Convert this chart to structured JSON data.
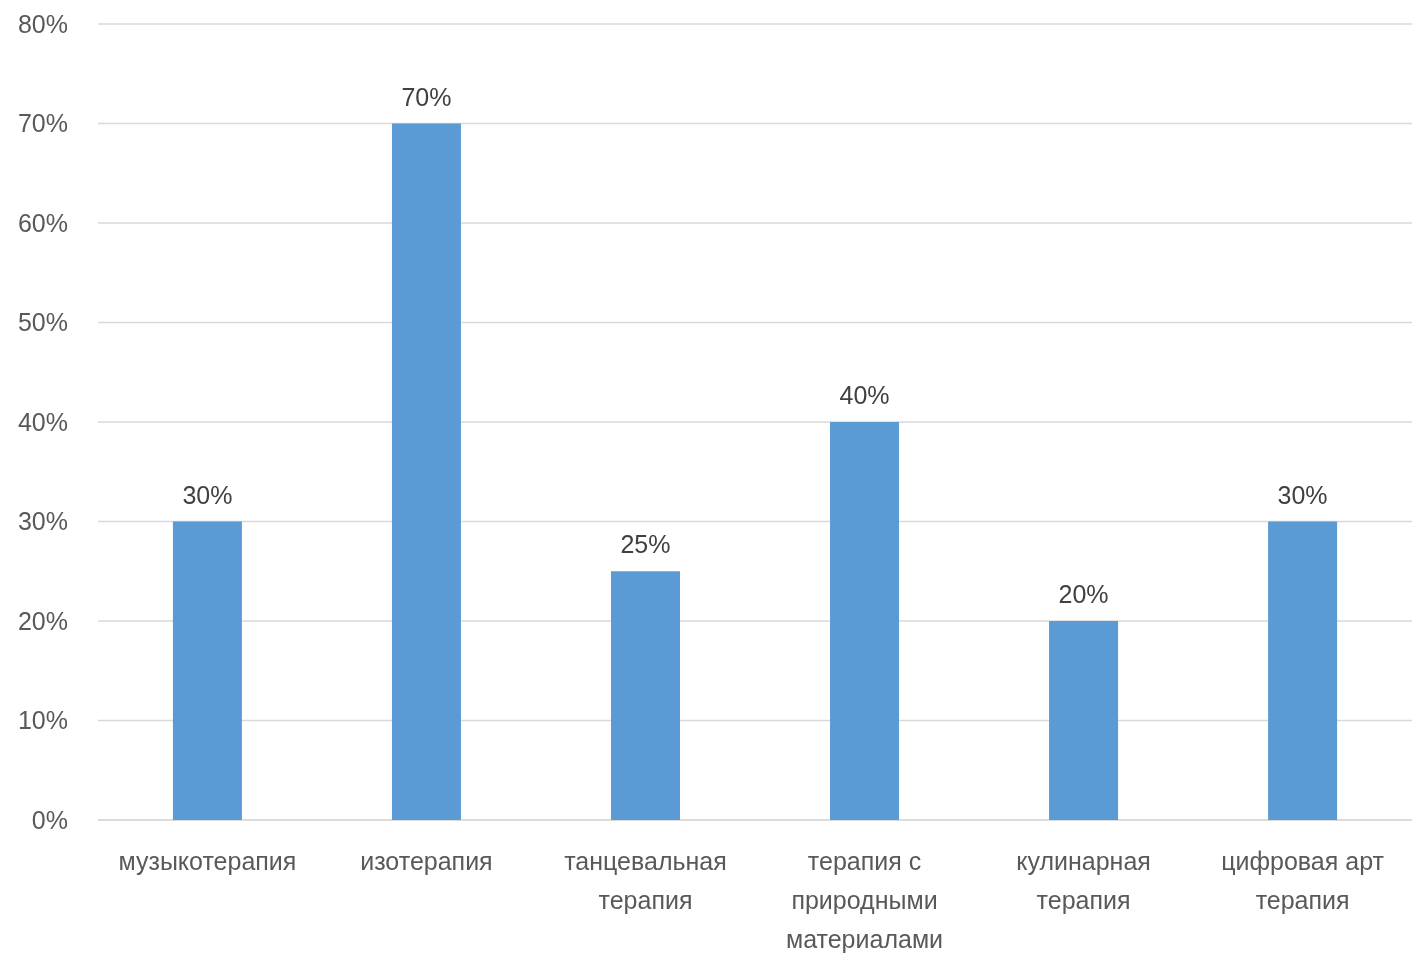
{
  "chart_data": {
    "type": "bar",
    "categories": [
      "музыкотерапия",
      "изотерапия",
      "танцевальная терапия",
      "терапия с природными материалами",
      "кулинарная терапия",
      "цифровая арт терапия"
    ],
    "values": [
      30,
      70,
      25,
      40,
      20,
      30
    ],
    "value_labels": [
      "30%",
      "70%",
      "25%",
      "40%",
      "20%",
      "30%"
    ],
    "color": "#5b9bd5",
    "ylim": [
      0,
      80
    ],
    "yticks": [
      {
        "value": 0,
        "label": "0%"
      },
      {
        "value": 10,
        "label": "10%"
      },
      {
        "value": 20,
        "label": "20%"
      },
      {
        "value": 30,
        "label": "30%"
      },
      {
        "value": 40,
        "label": "40%"
      },
      {
        "value": 50,
        "label": "50%"
      },
      {
        "value": 60,
        "label": "60%"
      },
      {
        "value": 70,
        "label": "70%"
      },
      {
        "value": 80,
        "label": "80%"
      }
    ],
    "grid": "y"
  }
}
